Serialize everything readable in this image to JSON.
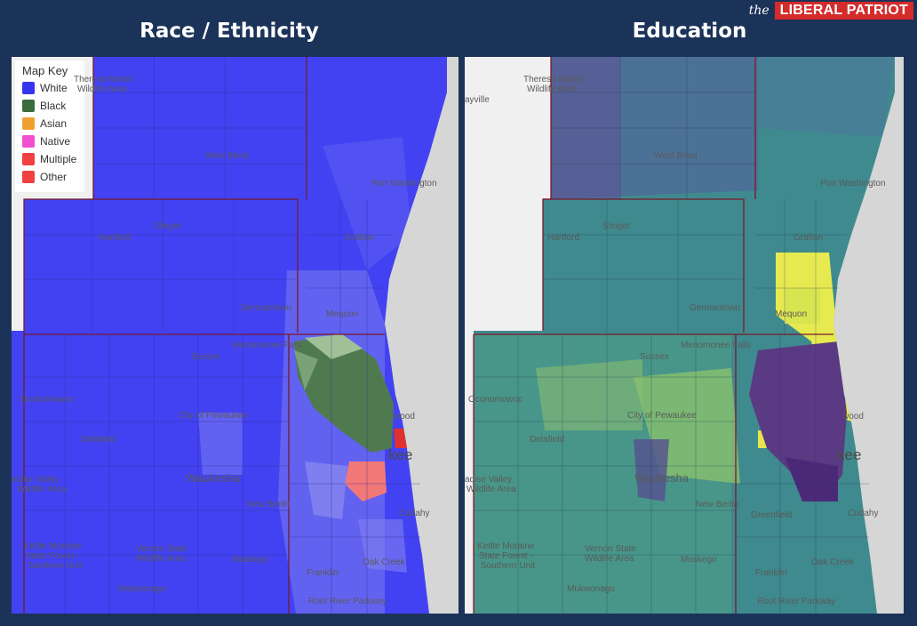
{
  "brand": {
    "prefix": "the",
    "name": "LIBERAL PATRIOT"
  },
  "panels": {
    "left_title": "Race / Ethnicity",
    "right_title": "Education"
  },
  "legend": {
    "title": "Map Key",
    "items": [
      {
        "label": "White",
        "color": "#3535f0"
      },
      {
        "label": "Black",
        "color": "#3c6b3c"
      },
      {
        "label": "Asian",
        "color": "#f0a030"
      },
      {
        "label": "Native",
        "color": "#f050d0"
      },
      {
        "label": "Multiple",
        "color": "#f04040"
      },
      {
        "label": "Other",
        "color": "#f04040"
      }
    ]
  },
  "places": {
    "theresa": "Theresa Marsh",
    "theresa2": "Wildlife Area",
    "west_bend": "West Bend",
    "port_washington": "Port Washington",
    "slinger": "Slinger",
    "hartford": "Hartford",
    "grafton": "Grafton",
    "germantown": "Germantown",
    "mequon": "Mequon",
    "menomonee_falls": "Menomonee Falls",
    "sussex": "Sussex",
    "city_of_pewaukee": "City of Pewaukee",
    "oconomowoc": "Oconomowoc",
    "delafield": "Delafield",
    "waukesha": "Waukesha",
    "new_berlin": "New Berlin",
    "greenfield": "Greenfield",
    "cudahy": "Cudahy",
    "franklin": "Franklin",
    "oak_creek": "Oak Creek",
    "muskego": "Muskego",
    "mukwonago": "Mukwonago",
    "vernon1": "Vernon State",
    "vernon2": "Wildlife Area",
    "kettle1": "Kettle Moraine",
    "kettle2": "State Forest -",
    "kettle3": "Southern Unit",
    "paradise1": "adise Valley",
    "paradise2": "Wildlife Area",
    "root_river": "Root River Parkway",
    "shorewood": "wood",
    "milwaukee": "kee",
    "bayville": "ayville"
  },
  "colors": {
    "white": "#3f3ff2",
    "black": "#4b6f4b",
    "multiple": "#f07878",
    "edu_mid": "#3e8f8f",
    "edu_high": "#e6e650",
    "edu_low": "#5a3f85",
    "lake": "#d8d8d8"
  }
}
